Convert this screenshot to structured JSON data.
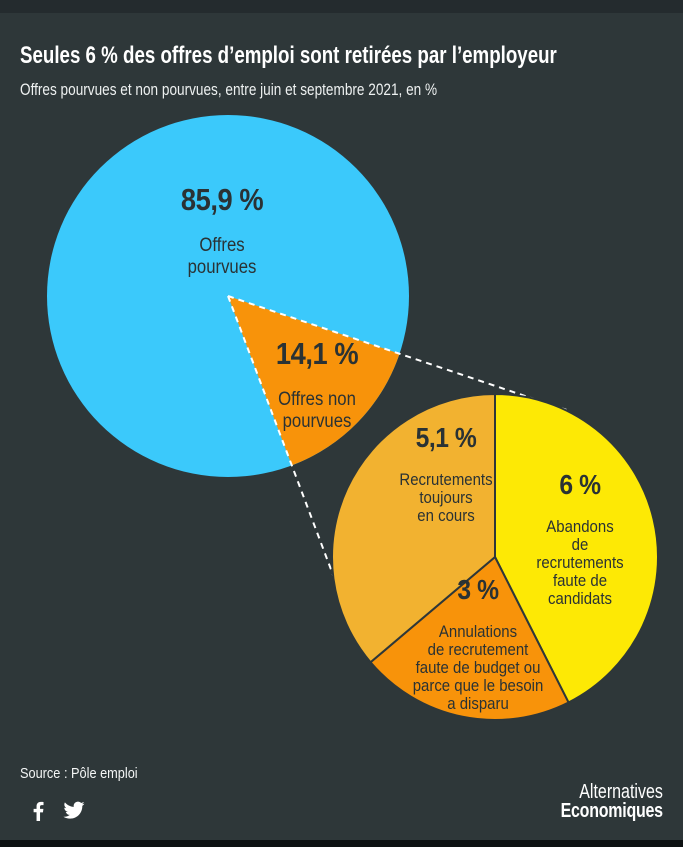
{
  "header": {
    "title": "Seules 6 % des offres d’emploi sont retirées par l’employeur",
    "subtitle": "Offres pourvues et non pourvues, entre juin et septembre 2021, en %"
  },
  "colors": {
    "background": "#2e3739",
    "top_strip": "#242b2e",
    "bottom_bar": "#0d1112",
    "blue": "#3bc9fb",
    "orange": "#f8930a",
    "gold": "#f2b230",
    "yellow": "#fde905",
    "dark_text": "#2a3234",
    "dash_line": "#ffffff"
  },
  "chart_data": [
    {
      "type": "pie",
      "name": "offres-pourvues-vs-non-pourvues",
      "title": "Offres pourvues et non pourvues, entre juin et septembre 2021, en %",
      "unit": "%",
      "slices": [
        {
          "label": "Offres\npourvues",
          "value": 85.9,
          "display": "85,9 %",
          "color": "#3bc9fb"
        },
        {
          "label": "Offres non\npourvues",
          "value": 14.1,
          "display": "14,1 %",
          "color": "#f8930a"
        }
      ]
    },
    {
      "type": "pie",
      "name": "detail-offres-non-pourvues",
      "unit": "%",
      "slices": [
        {
          "label": "Abandons\nde recrutements\nfaute de\ncandidats",
          "value": 6,
          "display": "6 %",
          "color": "#fde905"
        },
        {
          "label": "Annulations\nde recrutement\nfaute de budget ou\nparce que le besoin\na disparu",
          "value": 3,
          "display": "3 %",
          "color": "#f8930a"
        },
        {
          "label": "Recrutements\ntoujours\nen cours",
          "value": 5.1,
          "display": "5,1 %",
          "color": "#f2b230"
        }
      ]
    }
  ],
  "footer": {
    "source": "Source : Pôle emploi",
    "logo_line1": "Alternatives",
    "logo_line2": "Economiques"
  }
}
